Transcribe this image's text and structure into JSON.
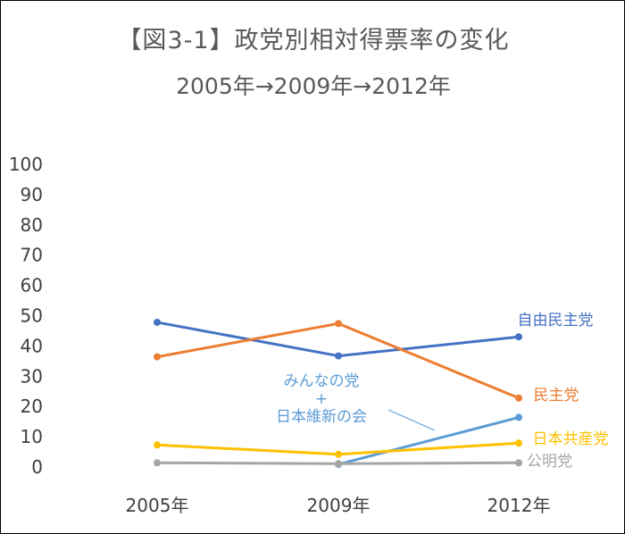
{
  "chart_data": {
    "type": "line",
    "title": "【図3-1】政党別相対得票率の変化",
    "subtitle": "2005年→2009年→2012年",
    "xlabel": "",
    "ylabel": "",
    "categories": [
      "2005年",
      "2009年",
      "2012年"
    ],
    "ylim": [
      0,
      100
    ],
    "yticks": [
      0,
      10,
      20,
      30,
      40,
      50,
      60,
      70,
      80,
      90,
      100
    ],
    "grid": false,
    "series": [
      {
        "name": "自由民主党",
        "label_lines": [
          "自由民主党"
        ],
        "color": "#4472c4",
        "values": [
          47.8,
          36.7,
          43.0
        ]
      },
      {
        "name": "民主党",
        "label_lines": [
          "民主党"
        ],
        "color": "#ed7d31",
        "values": [
          36.4,
          47.4,
          22.8
        ]
      },
      {
        "name": "みんなの党+日本維新の会",
        "label_lines": [
          "みんなの党",
          "+",
          "日本維新の会"
        ],
        "color": "#5b9bd5",
        "values": [
          null,
          0.9,
          16.4
        ]
      },
      {
        "name": "日本共産党",
        "label_lines": [
          "日本共産党"
        ],
        "color": "#ffc000",
        "values": [
          7.3,
          4.2,
          7.9
        ]
      },
      {
        "name": "公明党",
        "label_lines": [
          "公明党"
        ],
        "color": "#a5a5a5",
        "values": [
          1.4,
          1.1,
          1.4
        ]
      }
    ]
  }
}
